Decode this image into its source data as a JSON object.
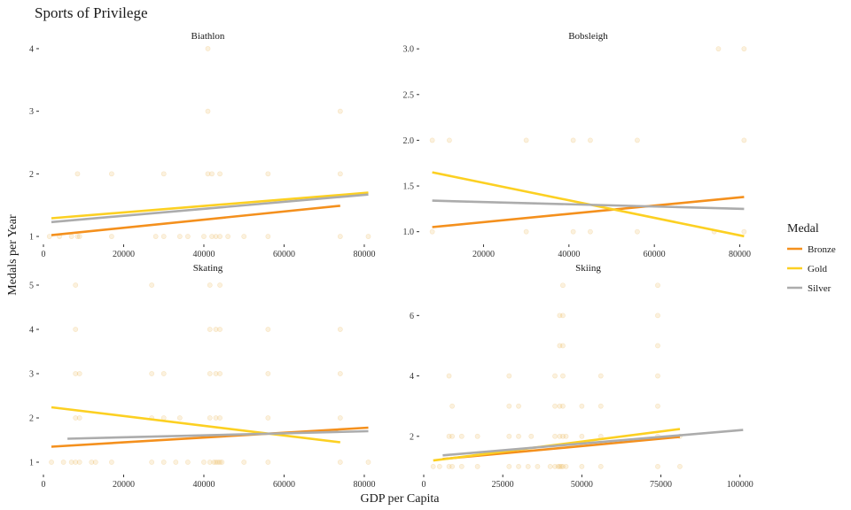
{
  "chart_data": {
    "type": "scatter",
    "title": "Sports of Privilege",
    "xlabel": "GDP per Capita",
    "ylabel": "Medals per Year",
    "legend": {
      "title": "Medal",
      "position": "right",
      "entries": [
        {
          "name": "Bronze",
          "color": "#f4901d"
        },
        {
          "name": "Gold",
          "color": "#fcd022"
        },
        {
          "name": "Silver",
          "color": "#acacac"
        }
      ]
    },
    "point_color": "#e8b04a",
    "panels": [
      {
        "name": "Biathlon",
        "xlim": [
          0,
          82000
        ],
        "ylim": [
          0.93,
          4.07
        ],
        "xticks": [
          0,
          20000,
          40000,
          60000,
          80000
        ],
        "yticks": [
          1,
          2,
          3,
          4
        ],
        "ytick_labels": [
          "1",
          "2",
          "3",
          "4"
        ],
        "points": [
          [
            1500,
            1
          ],
          [
            4000,
            1
          ],
          [
            7000,
            1
          ],
          [
            8500,
            1
          ],
          [
            9000,
            1
          ],
          [
            17000,
            1
          ],
          [
            28000,
            1
          ],
          [
            30000,
            1
          ],
          [
            34000,
            1
          ],
          [
            36000,
            1
          ],
          [
            40000,
            1
          ],
          [
            42000,
            1
          ],
          [
            43000,
            1
          ],
          [
            44000,
            1
          ],
          [
            46000,
            1
          ],
          [
            50000,
            1
          ],
          [
            56000,
            1
          ],
          [
            74000,
            1
          ],
          [
            81000,
            1
          ],
          [
            8500,
            2
          ],
          [
            17000,
            2
          ],
          [
            30000,
            2
          ],
          [
            41000,
            2
          ],
          [
            42000,
            2
          ],
          [
            44000,
            2
          ],
          [
            56000,
            2
          ],
          [
            74000,
            2
          ],
          [
            41000,
            3
          ],
          [
            74000,
            3
          ],
          [
            41000,
            4
          ]
        ],
        "series": [
          {
            "name": "Bronze",
            "x": [
              2000,
              74000
            ],
            "y": [
              1.02,
              1.49
            ]
          },
          {
            "name": "Gold",
            "x": [
              2000,
              81000
            ],
            "y": [
              1.29,
              1.7
            ]
          },
          {
            "name": "Silver",
            "x": [
              2000,
              81000
            ],
            "y": [
              1.23,
              1.67
            ]
          }
        ]
      },
      {
        "name": "Bobsleigh",
        "xlim": [
          6000,
          83000
        ],
        "ylim": [
          0.9,
          3.05
        ],
        "xticks": [
          20000,
          40000,
          60000,
          80000
        ],
        "yticks": [
          1.0,
          1.5,
          2.0,
          2.5,
          3.0
        ],
        "ytick_labels": [
          "1.0",
          "1.5",
          "2.0",
          "2.5",
          "3.0"
        ],
        "points": [
          [
            8000,
            1
          ],
          [
            30000,
            1
          ],
          [
            41000,
            1
          ],
          [
            45000,
            1
          ],
          [
            56000,
            1
          ],
          [
            74000,
            1
          ],
          [
            81000,
            1
          ],
          [
            8000,
            2
          ],
          [
            12000,
            2
          ],
          [
            30000,
            2
          ],
          [
            41000,
            2
          ],
          [
            45000,
            2
          ],
          [
            56000,
            2
          ],
          [
            81000,
            2
          ],
          [
            75000,
            3
          ],
          [
            81000,
            3
          ]
        ],
        "series": [
          {
            "name": "Bronze",
            "x": [
              8000,
              81000
            ],
            "y": [
              1.05,
              1.38
            ]
          },
          {
            "name": "Gold",
            "x": [
              8000,
              81000
            ],
            "y": [
              1.65,
              0.95
            ]
          },
          {
            "name": "Silver",
            "x": [
              8000,
              81000
            ],
            "y": [
              1.34,
              1.25
            ]
          }
        ]
      },
      {
        "name": "Skating",
        "xlim": [
          0,
          82000
        ],
        "ylim": [
          0.8,
          5.2
        ],
        "xticks": [
          0,
          20000,
          40000,
          60000,
          80000
        ],
        "yticks": [
          1,
          2,
          3,
          4,
          5
        ],
        "ytick_labels": [
          "1",
          "2",
          "3",
          "4",
          "5"
        ],
        "points": [
          [
            2000,
            1
          ],
          [
            5000,
            1
          ],
          [
            7000,
            1
          ],
          [
            8000,
            1
          ],
          [
            9000,
            1
          ],
          [
            12000,
            1
          ],
          [
            13000,
            1
          ],
          [
            17000,
            1
          ],
          [
            27000,
            1
          ],
          [
            30000,
            1
          ],
          [
            33000,
            1
          ],
          [
            36000,
            1
          ],
          [
            40000,
            1
          ],
          [
            41500,
            1
          ],
          [
            42500,
            1
          ],
          [
            43000,
            1
          ],
          [
            43500,
            1
          ],
          [
            44000,
            1
          ],
          [
            44500,
            1
          ],
          [
            50000,
            1
          ],
          [
            56000,
            1
          ],
          [
            74000,
            1
          ],
          [
            81000,
            1
          ],
          [
            8000,
            2
          ],
          [
            9000,
            2
          ],
          [
            27000,
            2
          ],
          [
            30000,
            2
          ],
          [
            34000,
            2
          ],
          [
            41500,
            2
          ],
          [
            43000,
            2
          ],
          [
            44000,
            2
          ],
          [
            56000,
            2
          ],
          [
            74000,
            2
          ],
          [
            8000,
            3
          ],
          [
            9000,
            3
          ],
          [
            27000,
            3
          ],
          [
            30000,
            3
          ],
          [
            41500,
            3
          ],
          [
            43000,
            3
          ],
          [
            44000,
            3
          ],
          [
            56000,
            3
          ],
          [
            74000,
            3
          ],
          [
            8000,
            4
          ],
          [
            41500,
            4
          ],
          [
            43000,
            4
          ],
          [
            44000,
            4
          ],
          [
            56000,
            4
          ],
          [
            74000,
            4
          ],
          [
            8000,
            5
          ],
          [
            27000,
            5
          ],
          [
            41500,
            5
          ],
          [
            44000,
            5
          ]
        ],
        "series": [
          {
            "name": "Bronze",
            "x": [
              2000,
              81000
            ],
            "y": [
              1.35,
              1.78
            ]
          },
          {
            "name": "Gold",
            "x": [
              2000,
              74000
            ],
            "y": [
              2.24,
              1.45
            ]
          },
          {
            "name": "Silver",
            "x": [
              6000,
              81000
            ],
            "y": [
              1.53,
              1.7
            ]
          }
        ]
      },
      {
        "name": "Skiing",
        "xlim": [
          0,
          104000
        ],
        "ylim": [
          0.85,
          7.3
        ],
        "xticks": [
          0,
          25000,
          50000,
          75000,
          100000
        ],
        "yticks": [
          2,
          4,
          6
        ],
        "ytick_labels": [
          "2",
          "4",
          "6"
        ],
        "points": [
          [
            3000,
            1
          ],
          [
            5000,
            1
          ],
          [
            8000,
            1
          ],
          [
            9000,
            1
          ],
          [
            12000,
            1
          ],
          [
            17000,
            1
          ],
          [
            27000,
            1
          ],
          [
            30000,
            1
          ],
          [
            33000,
            1
          ],
          [
            36000,
            1
          ],
          [
            40000,
            1
          ],
          [
            41500,
            1
          ],
          [
            42500,
            1
          ],
          [
            43000,
            1
          ],
          [
            43500,
            1
          ],
          [
            44000,
            1
          ],
          [
            45000,
            1
          ],
          [
            50000,
            1
          ],
          [
            56000,
            1
          ],
          [
            74000,
            1
          ],
          [
            81000,
            1
          ],
          [
            8000,
            2
          ],
          [
            9000,
            2
          ],
          [
            12000,
            2
          ],
          [
            17000,
            2
          ],
          [
            27000,
            2
          ],
          [
            30000,
            2
          ],
          [
            34000,
            2
          ],
          [
            41500,
            2
          ],
          [
            43000,
            2
          ],
          [
            44000,
            2
          ],
          [
            45000,
            2
          ],
          [
            50000,
            2
          ],
          [
            56000,
            2
          ],
          [
            74000,
            2
          ],
          [
            81000,
            2
          ],
          [
            9000,
            3
          ],
          [
            27000,
            3
          ],
          [
            30000,
            3
          ],
          [
            41500,
            3
          ],
          [
            43000,
            3
          ],
          [
            44000,
            3
          ],
          [
            50000,
            3
          ],
          [
            56000,
            3
          ],
          [
            74000,
            3
          ],
          [
            8000,
            4
          ],
          [
            27000,
            4
          ],
          [
            41500,
            4
          ],
          [
            44000,
            4
          ],
          [
            56000,
            4
          ],
          [
            74000,
            4
          ],
          [
            43000,
            5
          ],
          [
            44000,
            5
          ],
          [
            74000,
            5
          ],
          [
            43000,
            6
          ],
          [
            44000,
            6
          ],
          [
            74000,
            6
          ],
          [
            44000,
            7
          ],
          [
            74000,
            7
          ]
        ],
        "series": [
          {
            "name": "Bronze",
            "x": [
              6000,
              81000
            ],
            "y": [
              1.25,
              1.98
            ]
          },
          {
            "name": "Gold",
            "x": [
              3000,
              81000
            ],
            "y": [
              1.2,
              2.24
            ]
          },
          {
            "name": "Silver",
            "x": [
              6000,
              101000
            ],
            "y": [
              1.37,
              2.21
            ]
          }
        ]
      }
    ]
  }
}
